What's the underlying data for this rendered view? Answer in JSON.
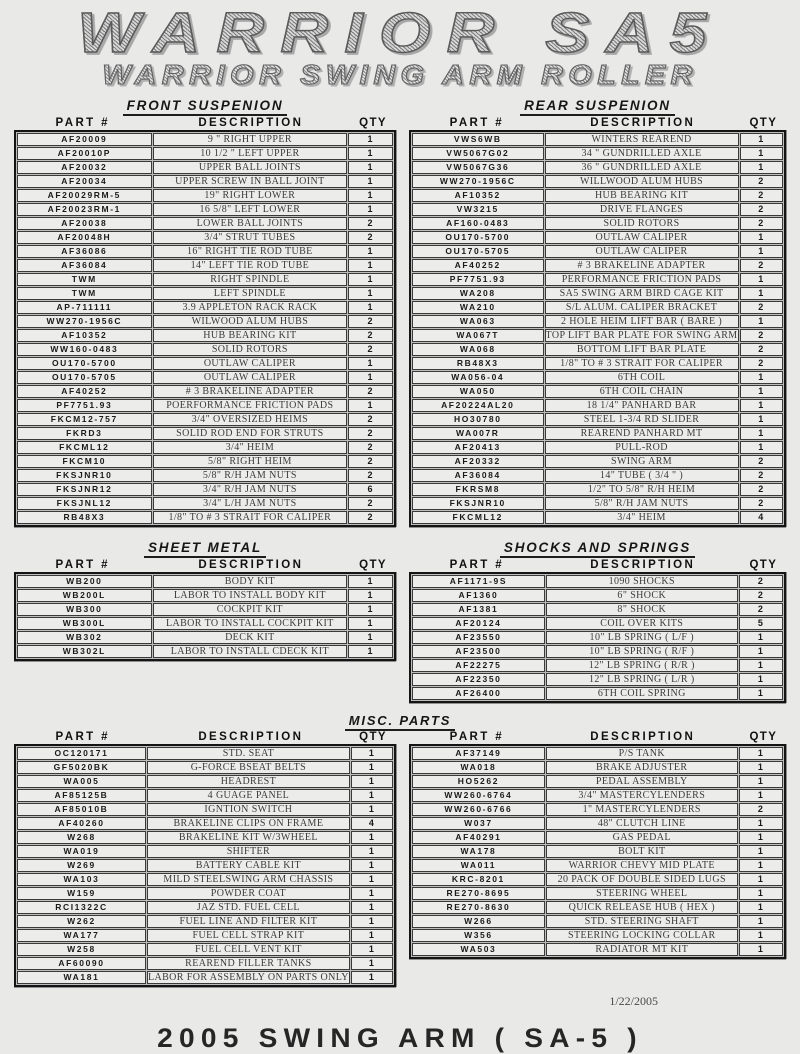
{
  "page": {
    "title": "WARRIOR SA5",
    "subtitle": "WARRIOR SWING ARM ROLLER"
  },
  "columns": {
    "part": "PART #",
    "description": "DESCRIPTION",
    "qty": "QTY"
  },
  "sections": {
    "front": {
      "heading": "FRONT SUSPENION",
      "rows": [
        {
          "part": "AF20009",
          "desc": "9 \" RIGHT UPPER",
          "qty": "1"
        },
        {
          "part": "AF20010P",
          "desc": "10 1/2 \"  LEFT UPPER",
          "qty": "1"
        },
        {
          "part": "AF20032",
          "desc": "UPPER BALL JOINTS",
          "qty": "1"
        },
        {
          "part": "AF20034",
          "desc": "UPPER SCREW IN BALL JOINT",
          "qty": "1"
        },
        {
          "part": "AF20029RM-5",
          "desc": "19\"  RIGHT LOWER",
          "qty": "1"
        },
        {
          "part": "AF20023RM-1",
          "desc": "16 5/8\" LEFT LOWER",
          "qty": "1"
        },
        {
          "part": "AF20038",
          "desc": "LOWER BALL JOINTS",
          "qty": "2"
        },
        {
          "part": "AF20048H",
          "desc": "3/4\" STRUT TUBES",
          "qty": "2"
        },
        {
          "part": "AF36086",
          "desc": "16\" RIGHT TIE ROD TUBE",
          "qty": "1"
        },
        {
          "part": "AF36084",
          "desc": "14\" LEFT TIE ROD TUBE",
          "qty": "1"
        },
        {
          "part": "TWM",
          "desc": "RIGHT SPINDLE",
          "qty": "1"
        },
        {
          "part": "TWM",
          "desc": "LEFT SPINDLE",
          "qty": "1"
        },
        {
          "part": "AP-711111",
          "desc": "3.9 APPLETON RACK RACK",
          "qty": "1"
        },
        {
          "part": "WW270-1956C",
          "desc": "WILWOOD ALUM HUBS",
          "qty": "2"
        },
        {
          "part": "AF10352",
          "desc": "HUB BEARING KIT",
          "qty": "2"
        },
        {
          "part": "WW160-0483",
          "desc": "SOLID ROTORS",
          "qty": "2"
        },
        {
          "part": "OU170-5700",
          "desc": "OUTLAW CALIPER",
          "qty": "1"
        },
        {
          "part": "OU170-5705",
          "desc": "OUTLAW CALIPER",
          "qty": "1"
        },
        {
          "part": "AF40252",
          "desc": "# 3 BRAKELINE ADAPTER",
          "qty": "2"
        },
        {
          "part": "PF7751.93",
          "desc": "POERFORMANCE FRICTION PADS",
          "qty": "1"
        },
        {
          "part": "FKCM12-757",
          "desc": "3/4\" OVERSIZED HEIMS",
          "qty": "2"
        },
        {
          "part": "FKRD3",
          "desc": "SOLID ROD END FOR STRUTS",
          "qty": "2"
        },
        {
          "part": "FKCML12",
          "desc": "3/4\" HEIM",
          "qty": "2"
        },
        {
          "part": "FKCM10",
          "desc": "5/8\" RIGHT HEIM",
          "qty": "2"
        },
        {
          "part": "FKSJNR10",
          "desc": "5/8\" R/H JAM NUTS",
          "qty": "2"
        },
        {
          "part": "FKSJNR12",
          "desc": "3/4\" R/H JAM NUTS",
          "qty": "6"
        },
        {
          "part": "FKSJNL12",
          "desc": "3/4\" L/H JAM NUTS",
          "qty": "2"
        },
        {
          "part": "RB48X3",
          "desc": "1/8\" TO # 3 STRAIT FOR CALIPER",
          "qty": "2"
        }
      ]
    },
    "rear": {
      "heading": "REAR SUSPENION",
      "rows": [
        {
          "part": "VWS6WB",
          "desc": "WINTERS REAREND",
          "qty": "1"
        },
        {
          "part": "VW5067G02",
          "desc": "34 \"  GUNDRILLED AXLE",
          "qty": "1"
        },
        {
          "part": "VW5067G36",
          "desc": "36 \" GUNDRILLED AXLE",
          "qty": "1"
        },
        {
          "part": "WW270-1956C",
          "desc": "WILLWOOD ALUM HUBS",
          "qty": "2"
        },
        {
          "part": "AF10352",
          "desc": "HUB BEARING KIT",
          "qty": "2"
        },
        {
          "part": "VW3215",
          "desc": "DRIVE FLANGES",
          "qty": "2"
        },
        {
          "part": "AF160-0483",
          "desc": "SOLID ROTORS",
          "qty": "2"
        },
        {
          "part": "OU170-5700",
          "desc": "OUTLAW CALIPER",
          "qty": "1"
        },
        {
          "part": "OU170-5705",
          "desc": "OUTLAW CALIPER",
          "qty": "1"
        },
        {
          "part": "AF40252",
          "desc": "# 3 BRAKELINE ADAPTER",
          "qty": "2"
        },
        {
          "part": "PF7751.93",
          "desc": "PERFORMANCE FRICTION PADS",
          "qty": "1"
        },
        {
          "part": "WA208",
          "desc": "SA5 SWING ARM BIRD CAGE KIT",
          "qty": "1"
        },
        {
          "part": "WA210",
          "desc": "S/L ALUM. CALIPER BRACKET",
          "qty": "2"
        },
        {
          "part": "WA063",
          "desc": "2 HOLE HEIM LIFT BAR  ( BARE )",
          "qty": "1"
        },
        {
          "part": "WA067T",
          "desc": "TOP LIFT BAR PLATE FOR SWING ARM",
          "qty": "2"
        },
        {
          "part": "WA068",
          "desc": "BOTTOM LIFT BAR PLATE",
          "qty": "2"
        },
        {
          "part": "RB48X3",
          "desc": "1/8\" TO # 3 STRAIT FOR CALIPER",
          "qty": "2"
        },
        {
          "part": "WA056-04",
          "desc": "6TH COIL",
          "qty": "1"
        },
        {
          "part": "WA050",
          "desc": "6TH COIL CHAIN",
          "qty": "1"
        },
        {
          "part": "AF20224AL20",
          "desc": "18 1/4\" PANHARD BAR",
          "qty": "1"
        },
        {
          "part": "HO30780",
          "desc": "STEEL 1-3/4 RD SLIDER",
          "qty": "1"
        },
        {
          "part": "WA007R",
          "desc": "REAREND PANHARD MT",
          "qty": "1"
        },
        {
          "part": "AF20413",
          "desc": "PULL-ROD",
          "qty": "1"
        },
        {
          "part": "AF20332",
          "desc": "SWING ARM",
          "qty": "2"
        },
        {
          "part": "AF36084",
          "desc": "14\"  TUBE      ( 3/4 \" )",
          "qty": "2"
        },
        {
          "part": "FKRSM8",
          "desc": "1/2\" TO 5/8\" R/H HEIM",
          "qty": "2"
        },
        {
          "part": "FKSJNR10",
          "desc": "5/8\" R/H JAM NUTS",
          "qty": "2"
        },
        {
          "part": "FKCML12",
          "desc": "3/4\" HEIM",
          "qty": "4"
        }
      ]
    },
    "sheet": {
      "heading": "SHEET METAL",
      "rows": [
        {
          "part": "WB200",
          "desc": "BODY KIT",
          "qty": "1"
        },
        {
          "part": "WB200L",
          "desc": "LABOR TO INSTALL BODY KIT",
          "qty": "1"
        },
        {
          "part": "WB300",
          "desc": "COCKPIT KIT",
          "qty": "1"
        },
        {
          "part": "WB300L",
          "desc": "LABOR TO INSTALL COCKPIT KIT",
          "qty": "1"
        },
        {
          "part": "WB302",
          "desc": "DECK KIT",
          "qty": "1"
        },
        {
          "part": "WB302L",
          "desc": "LABOR TO INSTALL CDECK KIT",
          "qty": "1"
        }
      ]
    },
    "shocks": {
      "heading": "SHOCKS AND SPRINGS",
      "rows": [
        {
          "part": "AF1171-9S",
          "desc": "1090 SHOCKS",
          "qty": "2"
        },
        {
          "part": "AF1360",
          "desc": "6\" SHOCK",
          "qty": "2"
        },
        {
          "part": "AF1381",
          "desc": "8\" SHOCK",
          "qty": "2"
        },
        {
          "part": "AF20124",
          "desc": "COIL OVER KITS",
          "qty": "5"
        },
        {
          "part": "AF23550",
          "desc": "10\"  LB SPRING  ( L/F )",
          "qty": "1"
        },
        {
          "part": "AF23500",
          "desc": "10\"  LB SPRING  ( R/F )",
          "qty": "1"
        },
        {
          "part": "AF22275",
          "desc": "12\"  LB SPRING  ( R/R )",
          "qty": "1"
        },
        {
          "part": "AF22350",
          "desc": "12\"  LB SPRING  ( L/R )",
          "qty": "1"
        },
        {
          "part": "AF26400",
          "desc": "6TH COIL SPRING",
          "qty": "1"
        }
      ]
    },
    "misc": {
      "heading": "MISC. PARTS",
      "left_rows": [
        {
          "part": "OC120171",
          "desc": "STD. SEAT",
          "qty": "1"
        },
        {
          "part": "GF5020BK",
          "desc": "G-FORCE BSEAT BELTS",
          "qty": "1"
        },
        {
          "part": "WA005",
          "desc": "HEADREST",
          "qty": "1"
        },
        {
          "part": "AF85125B",
          "desc": "4 GUAGE PANEL",
          "qty": "1"
        },
        {
          "part": "AF85010B",
          "desc": "IGNTION SWITCH",
          "qty": "1"
        },
        {
          "part": "AF40260",
          "desc": "BRAKELINE CLIPS ON FRAME",
          "qty": "4"
        },
        {
          "part": "W268",
          "desc": "BRAKELINE KIT W/3WHEEL",
          "qty": "1"
        },
        {
          "part": "WA019",
          "desc": "SHIFTER",
          "qty": "1"
        },
        {
          "part": "W269",
          "desc": "BATTERY CABLE KIT",
          "qty": "1"
        },
        {
          "part": "WA103",
          "desc": "MILD STEELSWING ARM CHASSIS",
          "qty": "1"
        },
        {
          "part": "W159",
          "desc": "POWDER COAT",
          "qty": "1"
        },
        {
          "part": "RCI1322C",
          "desc": "JAZ STD. FUEL CELL",
          "qty": "1"
        },
        {
          "part": "W262",
          "desc": "FUEL LINE AND FILTER KIT",
          "qty": "1"
        },
        {
          "part": "WA177",
          "desc": "FUEL CELL STRAP KIT",
          "qty": "1"
        },
        {
          "part": "W258",
          "desc": "FUEL CELL VENT KIT",
          "qty": "1"
        },
        {
          "part": "AF60090",
          "desc": "REAREND FILLER TANKS",
          "qty": "1"
        },
        {
          "part": "WA181",
          "desc": "LABOR FOR ASSEMBLY ON PARTS ONLY",
          "qty": "1"
        }
      ],
      "right_rows": [
        {
          "part": "AF37149",
          "desc": "P/S TANK",
          "qty": "1"
        },
        {
          "part": "WA018",
          "desc": "BRAKE ADJUSTER",
          "qty": "1"
        },
        {
          "part": "HO5262",
          "desc": "PEDAL ASSEMBLY",
          "qty": "1"
        },
        {
          "part": "WW260-6764",
          "desc": "3/4\" MASTERCYLENDERS",
          "qty": "1"
        },
        {
          "part": "WW260-6766",
          "desc": "1\" MASTERCYLENDERS",
          "qty": "2"
        },
        {
          "part": "W037",
          "desc": "48\" CLUTCH LINE",
          "qty": "1"
        },
        {
          "part": "AF40291",
          "desc": "GAS PEDAL",
          "qty": "1"
        },
        {
          "part": "WA178",
          "desc": "BOLT KIT",
          "qty": "1"
        },
        {
          "part": "WA011",
          "desc": "WARRIOR CHEVY MID PLATE",
          "qty": "1"
        },
        {
          "part": "KRC-8201",
          "desc": "20 PACK OF DOUBLE SIDED LUGS",
          "qty": "1"
        },
        {
          "part": "RE270-8695",
          "desc": "STEERING WHEEL",
          "qty": "1"
        },
        {
          "part": "RE270-8630",
          "desc": "QUICK RELEASE HUB ( HEX )",
          "qty": "1"
        },
        {
          "part": "W266",
          "desc": "STD. STEERING SHAFT",
          "qty": "1"
        },
        {
          "part": "W356",
          "desc": "STEERING LOCKING COLLAR",
          "qty": "1"
        },
        {
          "part": "WA503",
          "desc": "RADIATOR MT KIT",
          "qty": "1"
        }
      ]
    }
  },
  "footer": {
    "date": "1/22/2005",
    "title": "2005 SWING ARM  ( SA-5 )"
  }
}
